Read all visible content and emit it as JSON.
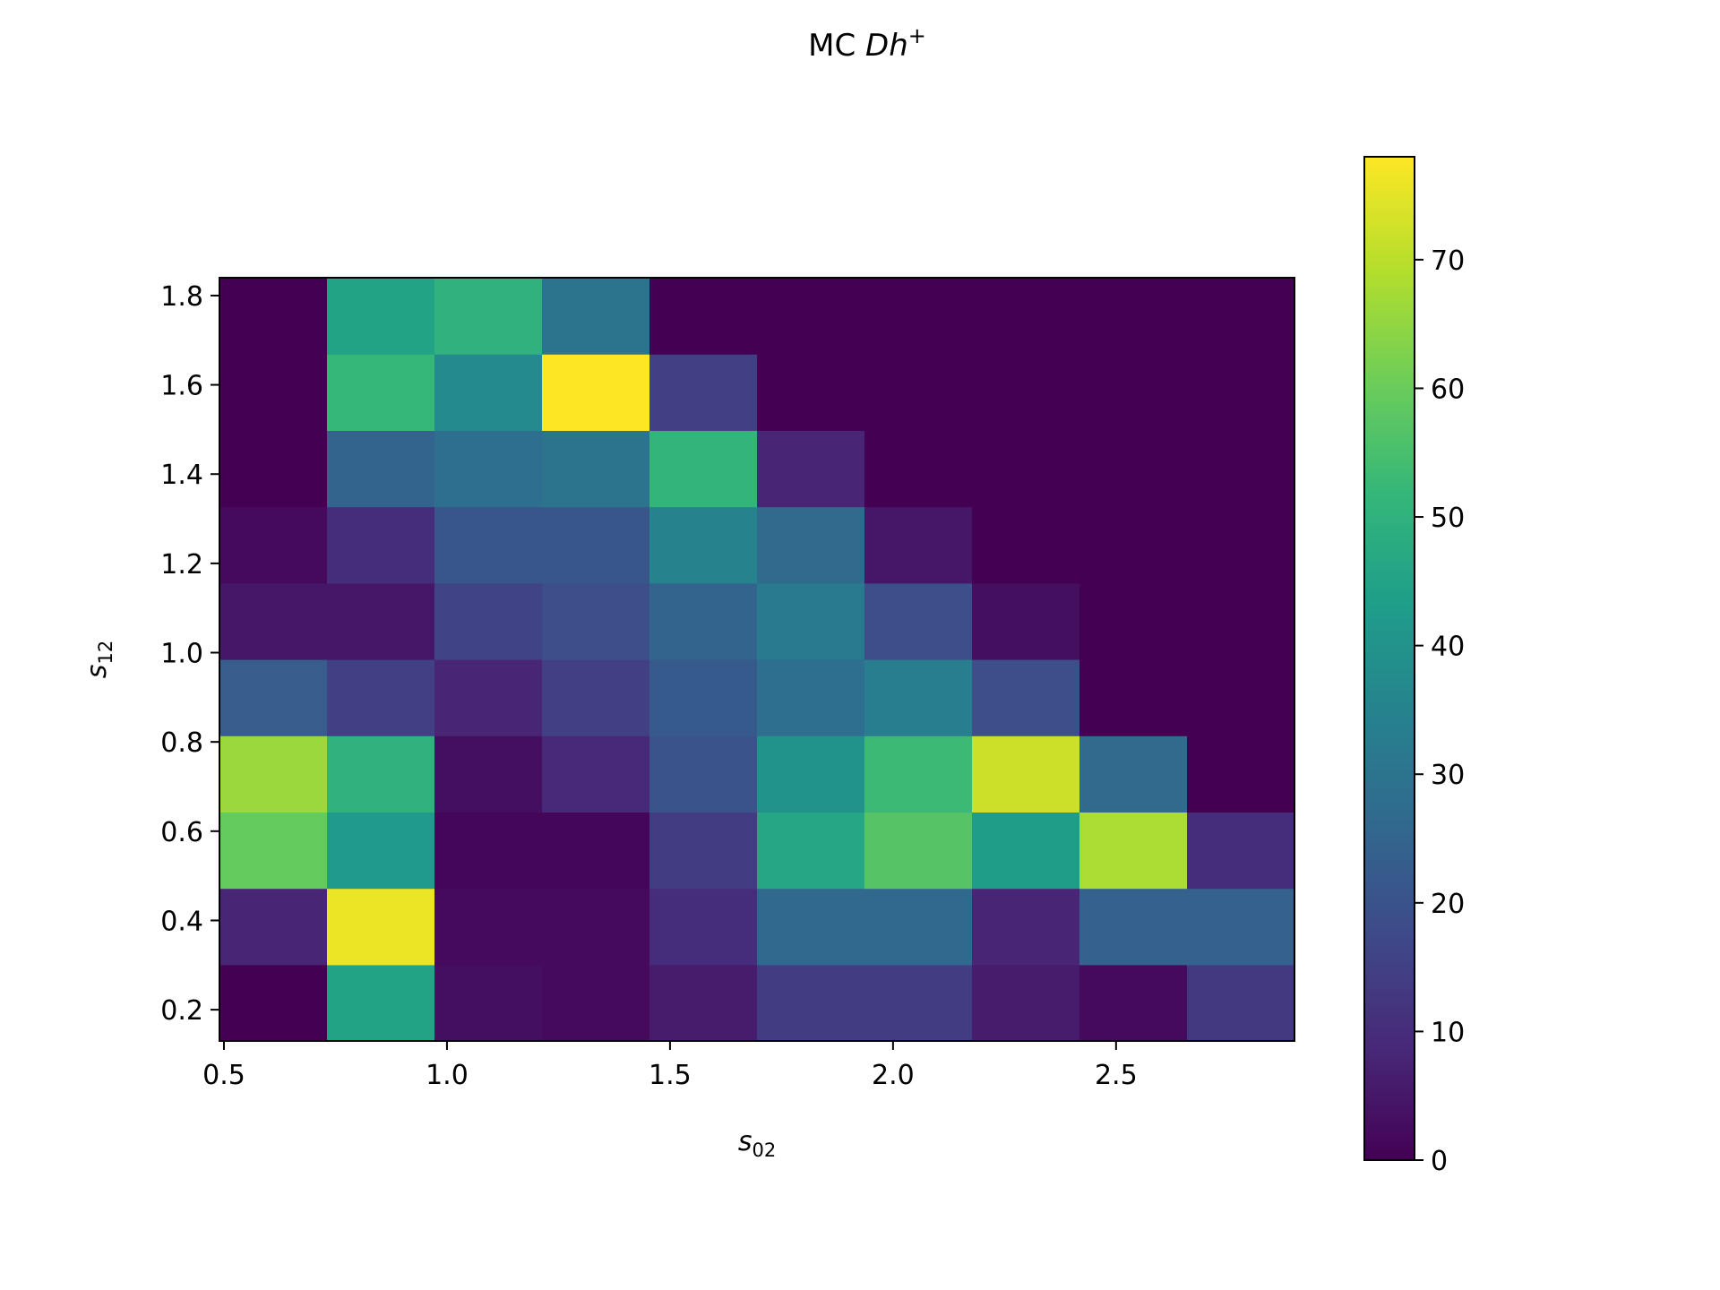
{
  "chart_data": {
    "type": "heatmap",
    "title_prefix": "MC ",
    "title_math": "Dh",
    "title_sup": "+",
    "xlabel_base": "s",
    "xlabel_sub": "02",
    "ylabel_base": "s",
    "ylabel_sub": "12",
    "x_edges": [
      0.49,
      0.731,
      0.972,
      1.213,
      1.454,
      1.695,
      1.936,
      2.177,
      2.418,
      2.659,
      2.9
    ],
    "y_edges": [
      0.13,
      0.301,
      0.472,
      0.643,
      0.814,
      0.985,
      1.156,
      1.327,
      1.498,
      1.669,
      1.84
    ],
    "xlim": [
      0.49,
      2.9
    ],
    "ylim": [
      0.13,
      1.84
    ],
    "xticks": [
      0.5,
      1.0,
      1.5,
      2.0,
      2.5
    ],
    "xtick_labels": [
      "0.5",
      "1.0",
      "1.5",
      "2.0",
      "2.5"
    ],
    "yticks": [
      0.2,
      0.4,
      0.6,
      0.8,
      1.0,
      1.2,
      1.4,
      1.6,
      1.8
    ],
    "ytick_labels": [
      "0.2",
      "0.4",
      "0.6",
      "0.8",
      "1.0",
      "1.2",
      "1.4",
      "1.6",
      "1.8"
    ],
    "values_rows_bottom_to_top": [
      [
        0,
        45,
        3,
        2,
        6,
        14,
        14,
        6,
        2,
        13
      ],
      [
        8,
        76,
        2,
        2,
        10,
        26,
        26,
        8,
        24,
        24
      ],
      [
        59,
        42,
        1,
        1,
        14,
        46,
        57,
        43,
        68,
        10
      ],
      [
        66,
        50,
        3,
        9,
        20,
        40,
        53,
        72,
        27,
        0
      ],
      [
        23,
        15,
        8,
        15,
        22,
        28,
        33,
        19,
        0,
        0
      ],
      [
        5,
        5,
        16,
        19,
        25,
        32,
        19,
        3,
        0,
        0
      ],
      [
        2,
        10,
        21,
        21,
        35,
        27,
        5,
        0,
        0,
        0
      ],
      [
        0,
        25,
        28,
        30,
        51,
        8,
        0,
        0,
        0,
        0
      ],
      [
        0,
        52,
        37,
        78,
        15,
        0,
        0,
        0,
        0,
        0
      ],
      [
        0,
        45,
        50,
        30,
        0,
        0,
        0,
        0,
        0,
        0
      ]
    ],
    "colormap": "viridis",
    "vmin": 0,
    "vmax": 78,
    "colorbar_ticks": [
      0,
      10,
      20,
      30,
      40,
      50,
      60,
      70
    ],
    "colorbar_tick_labels": [
      "0",
      "10",
      "20",
      "30",
      "40",
      "50",
      "60",
      "70"
    ],
    "colors": {
      "viridis_stops": [
        "#440154",
        "#482878",
        "#3e4989",
        "#31688e",
        "#26828e",
        "#1f9e89",
        "#35b779",
        "#6ece58",
        "#b5de2b",
        "#fde725"
      ]
    }
  }
}
